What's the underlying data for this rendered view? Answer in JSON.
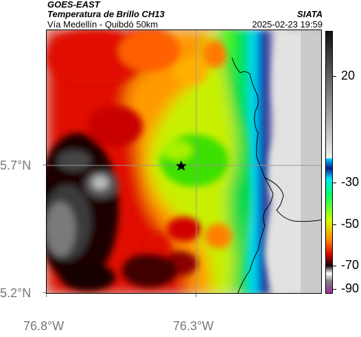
{
  "header": {
    "satellite": "GOES-EAST",
    "product": "Temperatura de Brillo CH13",
    "region": "Vía Medellín - Quibdó 50km",
    "org": "SIATA",
    "timestamp": "2025-02-23 19:59"
  },
  "axes": {
    "lat_ticks": [
      "5.7°N",
      "5.2°N"
    ],
    "lon_ticks": [
      "76.8°W",
      "76.3°W"
    ]
  },
  "colorbar": {
    "ticks": [
      "20",
      "-30",
      "-50",
      "-70",
      "-90"
    ],
    "colors": [
      "#1a1a1a",
      "#f2f2f2",
      "#00bfff",
      "#0a1a8c",
      "#00e5ff",
      "#00ff66",
      "#d7ff00",
      "#ff8c00",
      "#d20000",
      "#120000",
      "#ffffff",
      "#a020a0"
    ]
  },
  "map": {
    "marker": "star-marker",
    "gridlines": "on"
  }
}
